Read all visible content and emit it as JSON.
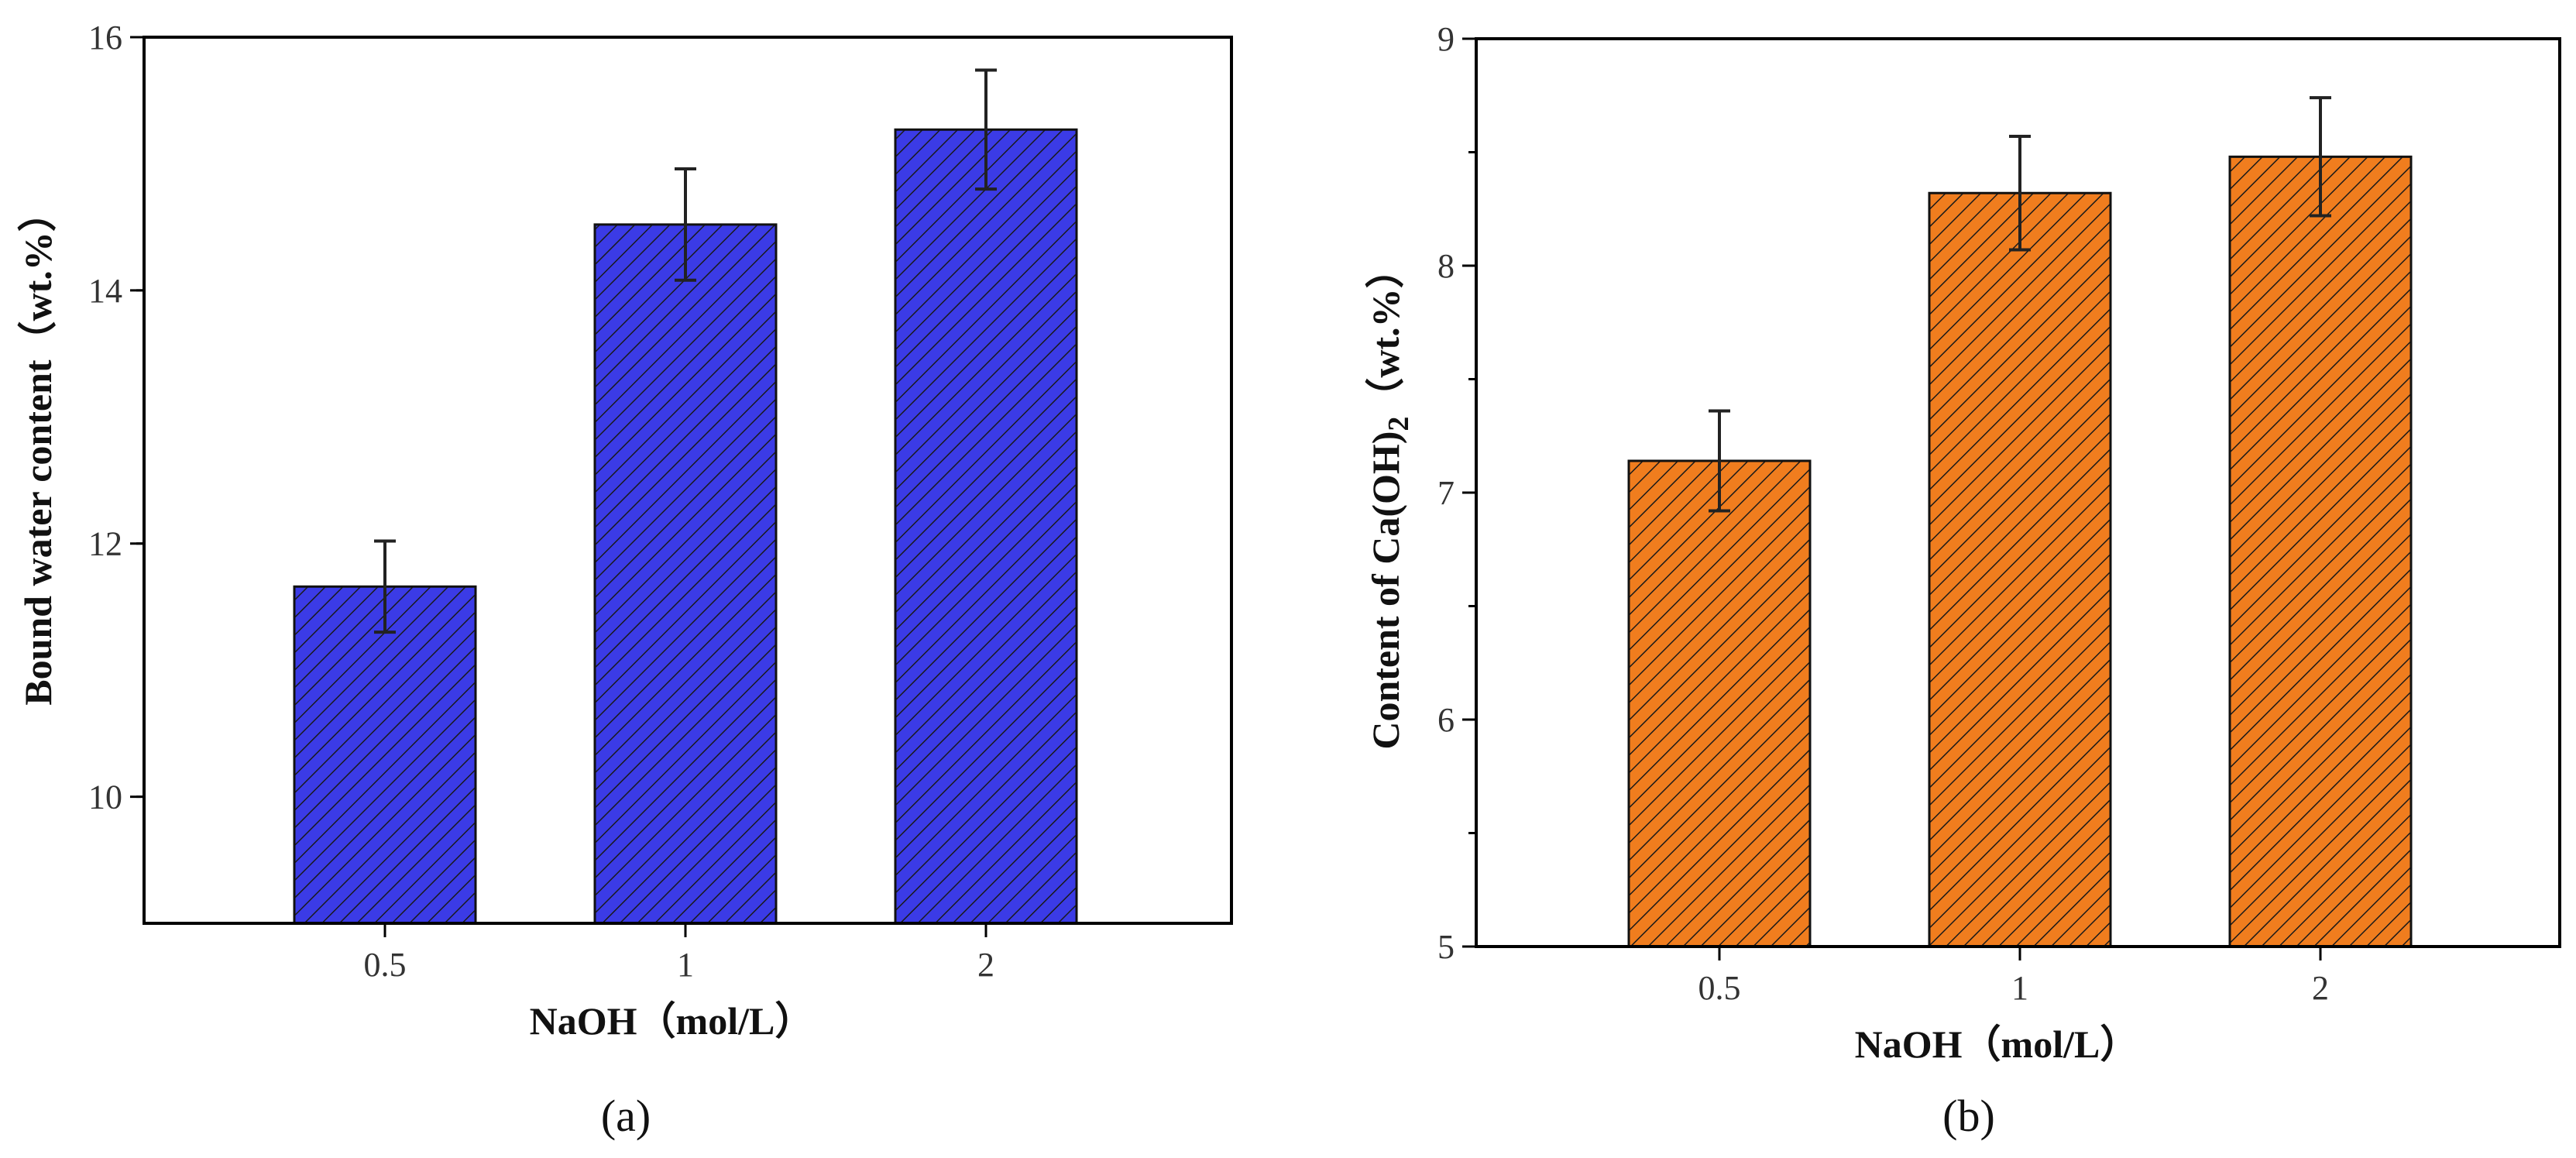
{
  "chart_data": [
    {
      "type": "bar",
      "panel_label": "(a)",
      "categories": [
        "0.5",
        "1",
        "2"
      ],
      "values": [
        11.66,
        14.52,
        15.27
      ],
      "errors": [
        0.36,
        0.44,
        0.47
      ],
      "title": "",
      "xlabel": "NaOH（mol/L）",
      "ylabel": "Bound water content（wt.%）",
      "ylim": [
        9,
        16
      ],
      "yticks": [
        10,
        12,
        14,
        16
      ],
      "ytick_labels": [
        "10",
        "12",
        "14",
        "16"
      ],
      "bar_color": "#3b3be6",
      "hatch": "diagonal",
      "grid": false
    },
    {
      "type": "bar",
      "panel_label": "(b)",
      "categories": [
        "0.5",
        "1",
        "2"
      ],
      "values": [
        7.14,
        8.32,
        8.48
      ],
      "errors": [
        0.22,
        0.25,
        0.26
      ],
      "title": "",
      "xlabel": "NaOH（mol/L）",
      "ylabel_prefix": "Content of  Ca(OH)",
      "ylabel_sub": "2",
      "ylabel_suffix": "（wt.%）",
      "ylim": [
        5,
        9
      ],
      "yticks": [
        5,
        6,
        7,
        8,
        9
      ],
      "ytick_labels": [
        "5",
        "6",
        "7",
        "8",
        "9"
      ],
      "bar_color": "#f07d1e",
      "hatch": "diagonal",
      "grid": false
    }
  ]
}
